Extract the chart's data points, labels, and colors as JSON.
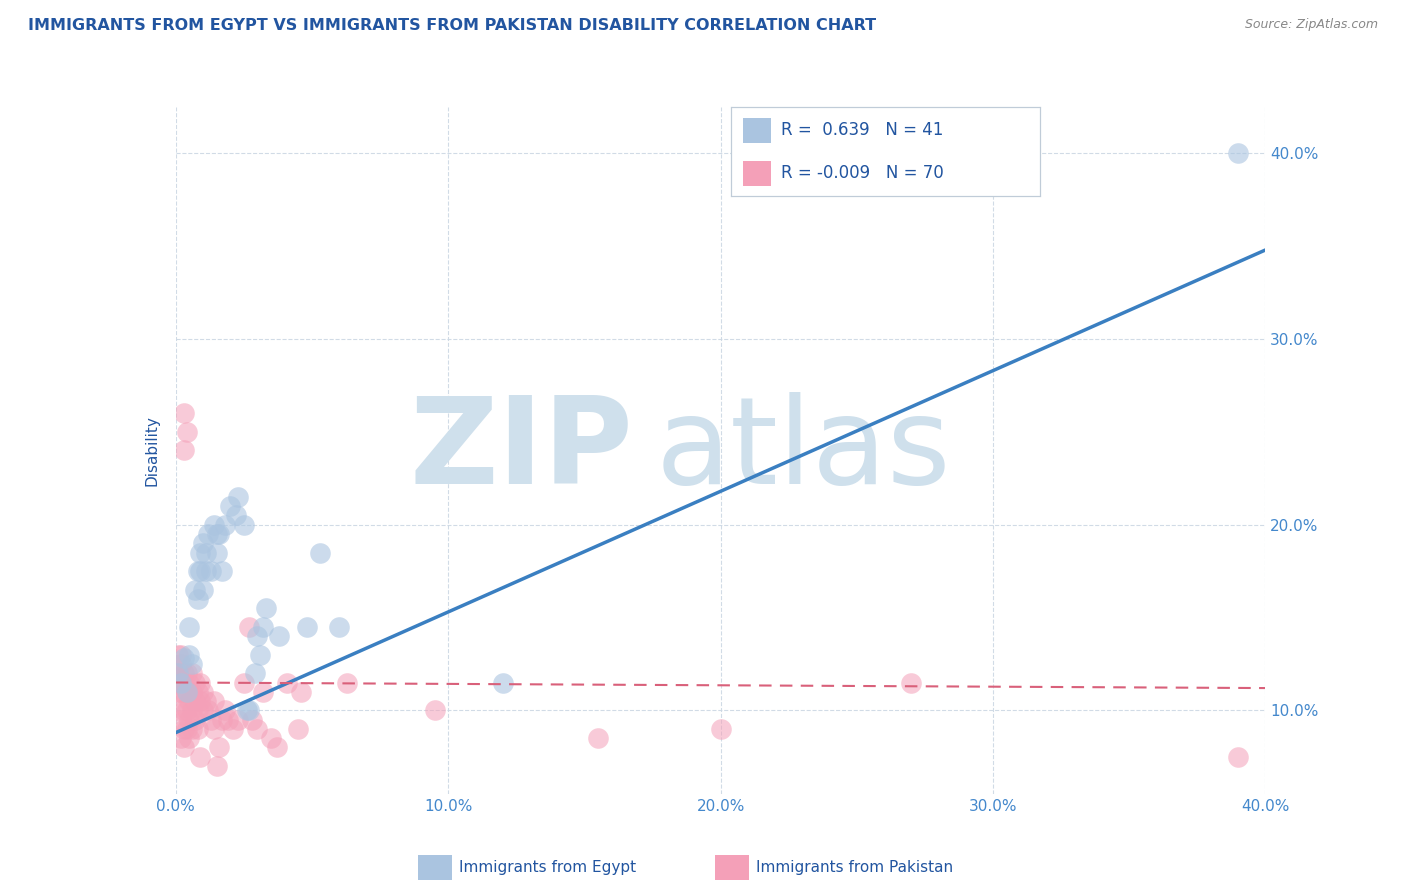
{
  "title": "IMMIGRANTS FROM EGYPT VS IMMIGRANTS FROM PAKISTAN DISABILITY CORRELATION CHART",
  "source": "Source: ZipAtlas.com",
  "ylabel": "Disability",
  "legend_egypt": {
    "R": 0.639,
    "N": 41
  },
  "legend_pakistan": {
    "R": -0.009,
    "N": 70
  },
  "egypt_color": "#aac4e0",
  "pakistan_color": "#f4a0b8",
  "egypt_line_color": "#3a7fc1",
  "pakistan_line_color": "#d9607a",
  "watermark_color": "#cfe0ec",
  "xlim": [
    0.0,
    0.4
  ],
  "ylim": [
    0.055,
    0.425
  ],
  "yticks": [
    0.1,
    0.2,
    0.3,
    0.4
  ],
  "ytick_labels": [
    "10.0%",
    "20.0%",
    "30.0%",
    "40.0%"
  ],
  "xticks": [
    0.0,
    0.1,
    0.2,
    0.3,
    0.4
  ],
  "xtick_labels": [
    "0.0%",
    "10.0%",
    "20.0%",
    "30.0%",
    "40.0%"
  ],
  "egypt_line_start_y": 0.088,
  "egypt_line_end_y": 0.348,
  "pakistan_line_start_y": 0.115,
  "pakistan_line_end_y": 0.112,
  "egypt_scatter": [
    [
      0.001,
      0.12
    ],
    [
      0.002,
      0.115
    ],
    [
      0.003,
      0.128
    ],
    [
      0.004,
      0.11
    ],
    [
      0.005,
      0.13
    ],
    [
      0.005,
      0.145
    ],
    [
      0.006,
      0.125
    ],
    [
      0.007,
      0.165
    ],
    [
      0.008,
      0.16
    ],
    [
      0.008,
      0.175
    ],
    [
      0.009,
      0.175
    ],
    [
      0.009,
      0.185
    ],
    [
      0.01,
      0.165
    ],
    [
      0.01,
      0.19
    ],
    [
      0.011,
      0.185
    ],
    [
      0.011,
      0.175
    ],
    [
      0.012,
      0.195
    ],
    [
      0.013,
      0.175
    ],
    [
      0.014,
      0.2
    ],
    [
      0.015,
      0.185
    ],
    [
      0.015,
      0.195
    ],
    [
      0.016,
      0.195
    ],
    [
      0.017,
      0.175
    ],
    [
      0.018,
      0.2
    ],
    [
      0.02,
      0.21
    ],
    [
      0.022,
      0.205
    ],
    [
      0.023,
      0.215
    ],
    [
      0.025,
      0.2
    ],
    [
      0.026,
      0.1
    ],
    [
      0.027,
      0.1
    ],
    [
      0.029,
      0.12
    ],
    [
      0.03,
      0.14
    ],
    [
      0.031,
      0.13
    ],
    [
      0.032,
      0.145
    ],
    [
      0.033,
      0.155
    ],
    [
      0.038,
      0.14
    ],
    [
      0.048,
      0.145
    ],
    [
      0.053,
      0.185
    ],
    [
      0.06,
      0.145
    ],
    [
      0.12,
      0.115
    ],
    [
      0.39,
      0.4
    ]
  ],
  "pakistan_scatter": [
    [
      0.0,
      0.12
    ],
    [
      0.001,
      0.11
    ],
    [
      0.001,
      0.12
    ],
    [
      0.001,
      0.13
    ],
    [
      0.001,
      0.1
    ],
    [
      0.002,
      0.115
    ],
    [
      0.002,
      0.125
    ],
    [
      0.002,
      0.11
    ],
    [
      0.002,
      0.095
    ],
    [
      0.002,
      0.085
    ],
    [
      0.002,
      0.13
    ],
    [
      0.003,
      0.12
    ],
    [
      0.003,
      0.11
    ],
    [
      0.003,
      0.1
    ],
    [
      0.003,
      0.09
    ],
    [
      0.003,
      0.08
    ],
    [
      0.003,
      0.24
    ],
    [
      0.003,
      0.26
    ],
    [
      0.004,
      0.12
    ],
    [
      0.004,
      0.11
    ],
    [
      0.004,
      0.1
    ],
    [
      0.004,
      0.09
    ],
    [
      0.004,
      0.25
    ],
    [
      0.005,
      0.115
    ],
    [
      0.005,
      0.105
    ],
    [
      0.005,
      0.095
    ],
    [
      0.005,
      0.085
    ],
    [
      0.006,
      0.11
    ],
    [
      0.006,
      0.12
    ],
    [
      0.006,
      0.1
    ],
    [
      0.006,
      0.09
    ],
    [
      0.007,
      0.115
    ],
    [
      0.007,
      0.105
    ],
    [
      0.007,
      0.095
    ],
    [
      0.008,
      0.11
    ],
    [
      0.008,
      0.1
    ],
    [
      0.008,
      0.09
    ],
    [
      0.009,
      0.115
    ],
    [
      0.009,
      0.105
    ],
    [
      0.009,
      0.075
    ],
    [
      0.01,
      0.11
    ],
    [
      0.01,
      0.1
    ],
    [
      0.011,
      0.105
    ],
    [
      0.012,
      0.1
    ],
    [
      0.013,
      0.095
    ],
    [
      0.014,
      0.105
    ],
    [
      0.014,
      0.09
    ],
    [
      0.015,
      0.07
    ],
    [
      0.016,
      0.08
    ],
    [
      0.017,
      0.095
    ],
    [
      0.018,
      0.1
    ],
    [
      0.019,
      0.095
    ],
    [
      0.021,
      0.09
    ],
    [
      0.023,
      0.095
    ],
    [
      0.025,
      0.115
    ],
    [
      0.027,
      0.145
    ],
    [
      0.028,
      0.095
    ],
    [
      0.03,
      0.09
    ],
    [
      0.032,
      0.11
    ],
    [
      0.035,
      0.085
    ],
    [
      0.037,
      0.08
    ],
    [
      0.041,
      0.115
    ],
    [
      0.045,
      0.09
    ],
    [
      0.046,
      0.11
    ],
    [
      0.063,
      0.115
    ],
    [
      0.095,
      0.1
    ],
    [
      0.155,
      0.085
    ],
    [
      0.2,
      0.09
    ],
    [
      0.27,
      0.115
    ],
    [
      0.39,
      0.075
    ]
  ],
  "background_color": "#ffffff",
  "grid_color": "#ccd8e4",
  "title_color": "#2255a0",
  "axis_label_color": "#2255a0",
  "tick_label_color": "#4488cc",
  "legend_text_color": "#2255a0",
  "source_color": "#888888"
}
